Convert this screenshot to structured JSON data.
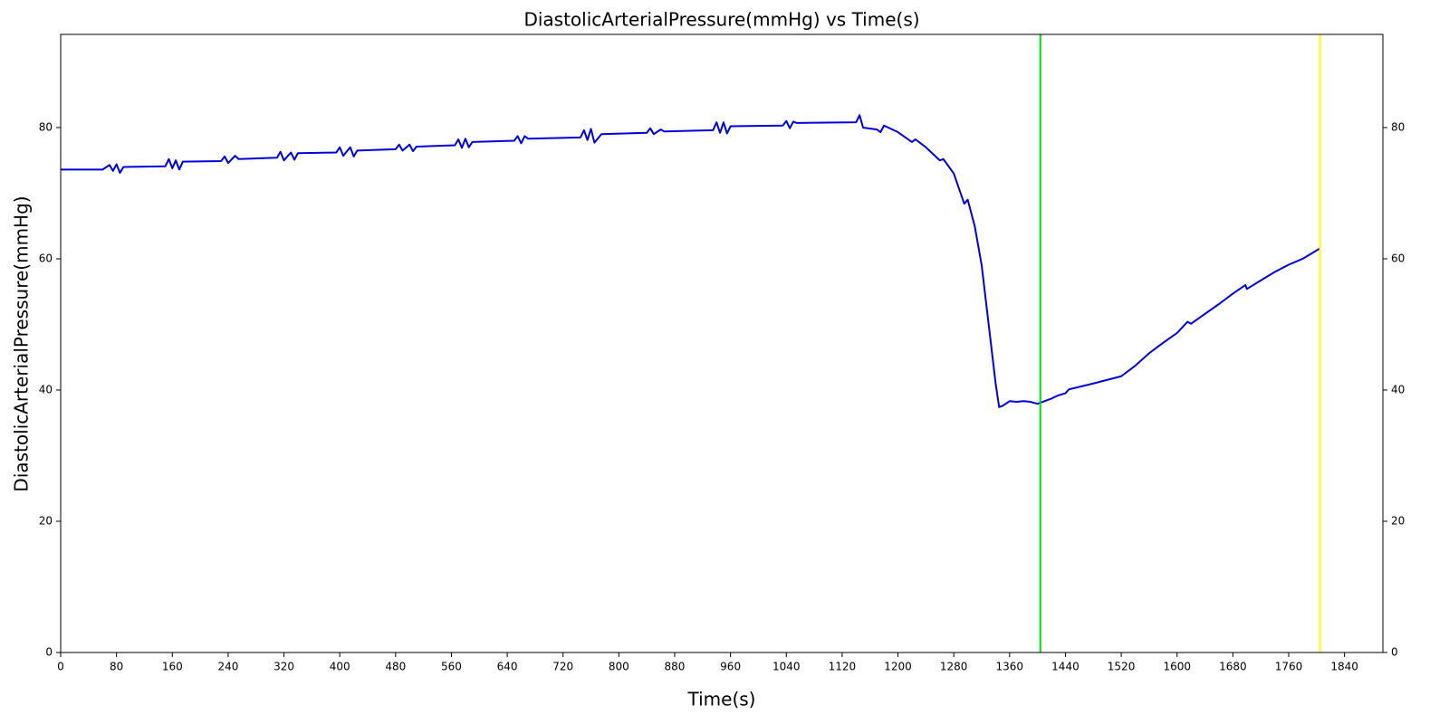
{
  "chart_data": {
    "type": "line",
    "title": "DiastolicArterialPressure(mmHg) vs Time(s)",
    "x_label": "Time(s)",
    "y_label": "DiastolicArterialPressure(mmHg)",
    "xlim": [
      0,
      1895
    ],
    "ylim": [
      0,
      94.2
    ],
    "xticks": [
      0,
      80,
      160,
      240,
      320,
      400,
      480,
      560,
      640,
      720,
      800,
      880,
      960,
      1040,
      1120,
      1200,
      1280,
      1360,
      1440,
      1520,
      1600,
      1680,
      1760,
      1840
    ],
    "yticks": [
      0,
      20,
      40,
      60,
      80
    ],
    "right_axis_ticks": true,
    "grid": false,
    "vlines": [
      {
        "x": 1404,
        "color": "#00dd00"
      },
      {
        "x": 1805,
        "color": "#ffff00"
      }
    ],
    "series": [
      {
        "color": "#0000dd",
        "x": [
          0,
          60,
          70,
          75,
          80,
          85,
          90,
          150,
          155,
          160,
          165,
          170,
          175,
          230,
          235,
          240,
          250,
          255,
          310,
          315,
          320,
          330,
          335,
          340,
          395,
          400,
          405,
          415,
          420,
          425,
          480,
          485,
          490,
          500,
          505,
          510,
          565,
          570,
          575,
          580,
          585,
          590,
          650,
          655,
          660,
          665,
          670,
          745,
          750,
          755,
          760,
          765,
          775,
          840,
          845,
          850,
          860,
          865,
          935,
          940,
          945,
          950,
          955,
          960,
          1035,
          1040,
          1045,
          1050,
          1055,
          1140,
          1145,
          1150,
          1170,
          1175,
          1180,
          1200,
          1220,
          1225,
          1240,
          1260,
          1265,
          1280,
          1295,
          1300,
          1310,
          1320,
          1330,
          1340,
          1345,
          1350,
          1360,
          1370,
          1380,
          1390,
          1400,
          1410,
          1420,
          1430,
          1440,
          1445,
          1480,
          1520,
          1540,
          1560,
          1580,
          1600,
          1615,
          1620,
          1640,
          1660,
          1680,
          1698,
          1700,
          1720,
          1740,
          1760,
          1780,
          1805
        ],
        "values": [
          73.6,
          73.6,
          74.3,
          73.4,
          74.4,
          73.1,
          74.0,
          74.1,
          75.2,
          73.8,
          75.0,
          73.6,
          74.8,
          74.9,
          75.6,
          74.6,
          75.7,
          75.2,
          75.4,
          76.3,
          75.0,
          76.2,
          75.1,
          76.1,
          76.2,
          77.0,
          75.7,
          77.0,
          75.6,
          76.5,
          76.7,
          77.4,
          76.5,
          77.4,
          76.4,
          77.1,
          77.3,
          78.2,
          76.9,
          78.3,
          77.0,
          77.8,
          78.0,
          78.7,
          77.6,
          78.7,
          78.3,
          78.5,
          79.6,
          78.1,
          79.8,
          77.7,
          79.0,
          79.2,
          79.9,
          79.0,
          79.7,
          79.4,
          79.6,
          80.8,
          79.2,
          80.8,
          79.1,
          80.2,
          80.3,
          81.0,
          79.9,
          80.9,
          80.7,
          80.8,
          81.9,
          80.0,
          79.7,
          79.3,
          80.3,
          79.3,
          77.8,
          78.2,
          77.0,
          75.0,
          75.2,
          73.0,
          68.4,
          69.0,
          65.0,
          59.0,
          50.0,
          41.0,
          37.4,
          37.6,
          38.3,
          38.2,
          38.3,
          38.2,
          37.9,
          38.3,
          38.7,
          39.2,
          39.5,
          40.1,
          41.0,
          42.1,
          43.7,
          45.6,
          47.2,
          48.7,
          50.4,
          50.1,
          51.6,
          53.1,
          54.7,
          56.0,
          55.4,
          56.7,
          58.0,
          59.1,
          60.0,
          61.6
        ]
      }
    ]
  }
}
